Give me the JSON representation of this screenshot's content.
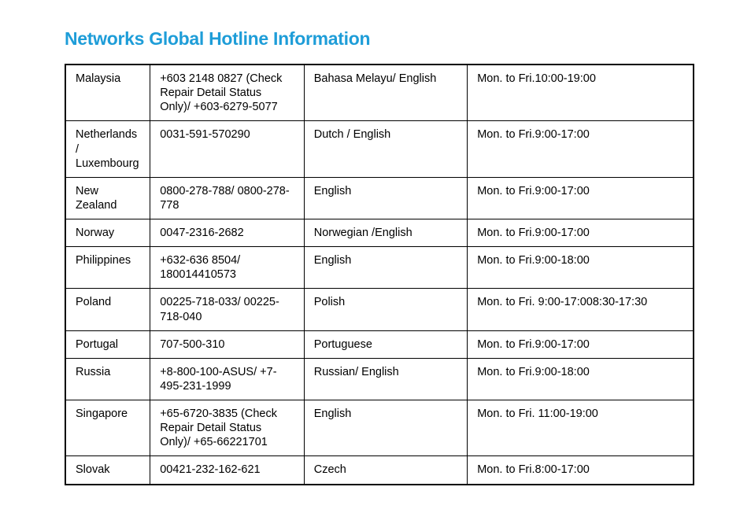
{
  "title": "Networks Global Hotline Information",
  "title_color": "#1e9dd8",
  "title_fontsize": 23,
  "title_fontweight": 900,
  "background_color": "#ffffff",
  "border_color": "#000000",
  "cell_fontsize": 14.5,
  "cell_text_color": "#000000",
  "columns": [
    "country",
    "phone",
    "language",
    "hours"
  ],
  "column_widths_percent": [
    13.5,
    24.5,
    26,
    36
  ],
  "rows": [
    {
      "country": "Malaysia",
      "phone": "+603 2148 0827 (Check Repair Detail Status Only)/ +603-6279-5077",
      "language": "Bahasa Melayu/ English",
      "hours": "Mon. to Fri.10:00-19:00"
    },
    {
      "country": "Netherlands / Luxembourg",
      "phone": "0031-591-570290",
      "language": "Dutch / English",
      "hours": "Mon. to Fri.9:00-17:00"
    },
    {
      "country": "New Zealand",
      "phone": "0800-278-788/ 0800-278-778",
      "language": "English",
      "hours": "Mon. to Fri.9:00-17:00"
    },
    {
      "country": "Norway",
      "phone": "0047-2316-2682",
      "language": "Norwegian /English",
      "hours": "Mon. to Fri.9:00-17:00"
    },
    {
      "country": "Philippines",
      "phone": "+632-636 8504/ 180014410573",
      "language": "English",
      "hours": "Mon. to Fri.9:00-18:00"
    },
    {
      "country": "Poland",
      "phone": "00225-718-033/ 00225-718-040",
      "language": "Polish",
      "hours": "Mon. to Fri. 9:00-17:008:30-17:30"
    },
    {
      "country": "Portugal",
      "phone": "707-500-310",
      "language": "Portuguese",
      "hours": "Mon. to Fri.9:00-17:00"
    },
    {
      "country": "Russia",
      "phone": "+8-800-100-ASUS/ +7-495-231-1999",
      "language": "Russian/ English",
      "hours": "Mon. to Fri.9:00-18:00"
    },
    {
      "country": "Singapore",
      "phone": "+65-6720-3835 (Check Repair Detail Status Only)/ +65-66221701",
      "language": "English",
      "hours": "Mon. to Fri. 11:00-19:00"
    },
    {
      "country": "Slovak",
      "phone": "00421-232-162-621",
      "language": "Czech",
      "hours": "Mon. to Fri.8:00-17:00"
    }
  ]
}
